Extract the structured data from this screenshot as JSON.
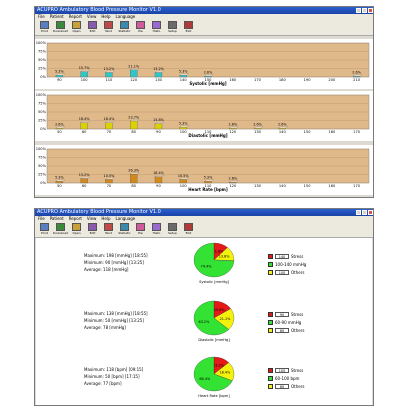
{
  "app_title": "ACUPRO Ambulatory Blood Pressure Monitor V1.0",
  "menu": [
    "File",
    "Patient",
    "Report",
    "View",
    "Help",
    "Language"
  ],
  "toolbar": [
    {
      "label": "Print",
      "icon": "printer-icon"
    },
    {
      "label": "Download",
      "icon": "download-icon"
    },
    {
      "label": "Open",
      "icon": "folder-icon"
    },
    {
      "label": "Edit",
      "icon": "edit-icon"
    },
    {
      "label": "Tend",
      "icon": "trend-icon"
    },
    {
      "label": "Statistic",
      "icon": "statistics-icon"
    },
    {
      "label": "Pie",
      "icon": "pie-icon"
    },
    {
      "label": "Histo",
      "icon": "histogram-icon"
    },
    {
      "label": "Setup",
      "icon": "setup-icon"
    },
    {
      "label": "Exit",
      "icon": "exit-icon"
    }
  ],
  "colors": {
    "plot_bg": "#e0b98a",
    "panel_bg": "#ffffff",
    "screen_bg": "#3cd2e8",
    "cyan_bar": "#2ec6c6",
    "yellow_bar": "#d9d100",
    "orange_bar": "#d08a1c",
    "pie_green": "#33e233",
    "pie_red": "#e61919",
    "pie_yellow": "#f2f20d"
  },
  "chart_data": [
    {
      "type": "bar",
      "title": "",
      "xlabel": "Systolic [mmHg]",
      "ylabel": "",
      "ylim": [
        0,
        100
      ],
      "yticks": [
        "100%",
        "75%",
        "50%",
        "25%",
        "0%"
      ],
      "categories": [
        "90",
        "100",
        "110",
        "120",
        "130",
        "140",
        "150",
        "160",
        "170",
        "180",
        "190",
        "200",
        "210"
      ],
      "values": [
        5.3,
        15.7,
        13.2,
        21.1,
        13.2,
        5.3,
        2.6,
        0,
        0,
        0,
        0,
        0,
        2.6
      ],
      "labels": [
        "5.3%",
        "15.7%",
        "13.2%",
        "21.1%",
        "13.2%",
        "5.3%",
        "2.6%",
        "",
        "",
        "",
        "",
        "",
        "2.6%"
      ]
    },
    {
      "type": "bar",
      "title": "",
      "xlabel": "Diastolic [mmHg]",
      "ylabel": "",
      "ylim": [
        0,
        100
      ],
      "yticks": [
        "100%",
        "75%",
        "50%",
        "25%",
        "0%"
      ],
      "categories": [
        "50",
        "60",
        "70",
        "80",
        "90",
        "100",
        "110",
        "120",
        "130",
        "140",
        "150",
        "160",
        "170"
      ],
      "values": [
        2.6,
        18.4,
        18.4,
        23.7,
        15.8,
        5.3,
        0,
        2.6,
        2.6,
        2.6,
        0,
        0,
        0
      ],
      "labels": [
        "2.6%",
        "18.4%",
        "18.4%",
        "23.7%",
        "15.8%",
        "5.3%",
        "",
        "2.6%",
        "2.6%",
        "2.6%",
        "",
        "",
        ""
      ]
    },
    {
      "type": "bar",
      "title": "",
      "xlabel": "Heart Rate [bpm]",
      "ylabel": "",
      "ylim": [
        0,
        100
      ],
      "yticks": [
        "100%",
        "75%",
        "50%",
        "25%",
        "0%"
      ],
      "categories": [
        "50",
        "60",
        "70",
        "80",
        "90",
        "100",
        "110",
        "120",
        "130",
        "140",
        "150",
        "160",
        "170"
      ],
      "values": [
        5.3,
        13.2,
        10.5,
        26.3,
        18.4,
        10.5,
        5.3,
        2.6,
        0,
        0,
        0,
        0,
        0
      ],
      "labels": [
        "5.3%",
        "13.2%",
        "10.5%",
        "26.3%",
        "18.4%",
        "10.5%",
        "5.3%",
        "2.6%",
        "",
        "",
        "",
        "",
        ""
      ]
    },
    {
      "type": "pie",
      "title": "Systolic [mmHg]",
      "values": [
        11.8,
        13.8,
        74.4
      ],
      "labels": [
        "11.8%",
        "13.8%",
        "74.4%"
      ],
      "series": [
        {
          "name": "Stress",
          "threshold": "140"
        },
        {
          "name": "100-140 mmHg"
        },
        {
          "name": "Others",
          "threshold": "100"
        }
      ]
    },
    {
      "type": "pie",
      "title": "Diastolic [mmHg]",
      "values": [
        15.8,
        21.1,
        63.2
      ],
      "labels": [
        "15.8%",
        "21.1%",
        "63.2%"
      ],
      "series": [
        {
          "name": "Stress",
          "threshold": "90"
        },
        {
          "name": "60-90 mmHg"
        },
        {
          "name": "Others",
          "threshold": "60"
        }
      ]
    },
    {
      "type": "pie",
      "title": "Heart Rate [bpm]",
      "values": [
        13.2,
        18.4,
        68.4
      ],
      "labels": [
        "13.2%",
        "18.4%",
        "68.4%"
      ],
      "series": [
        {
          "name": "Stress",
          "threshold": "100"
        },
        {
          "name": "60-100 bpm"
        },
        {
          "name": "Others",
          "threshold": "60"
        }
      ]
    }
  ],
  "stats": [
    {
      "max": "Maximum: 198 [mmHg] [18:55]",
      "min": "Minimum: 90 [mmHg] [13:25]",
      "avg": "Average: 118 [mmHg]"
    },
    {
      "max": "Maximum: 138 [mmHg] [18:55]",
      "min": "Minimum: 50 [mmHg] [13:25]",
      "avg": "Average: 78 [mmHg]"
    },
    {
      "max": "Maximum: 118 [bpm] [09:15]",
      "min": "Minimum: 50 [bpm] [17:15]",
      "avg": "Average: 77 [bpm]"
    }
  ]
}
